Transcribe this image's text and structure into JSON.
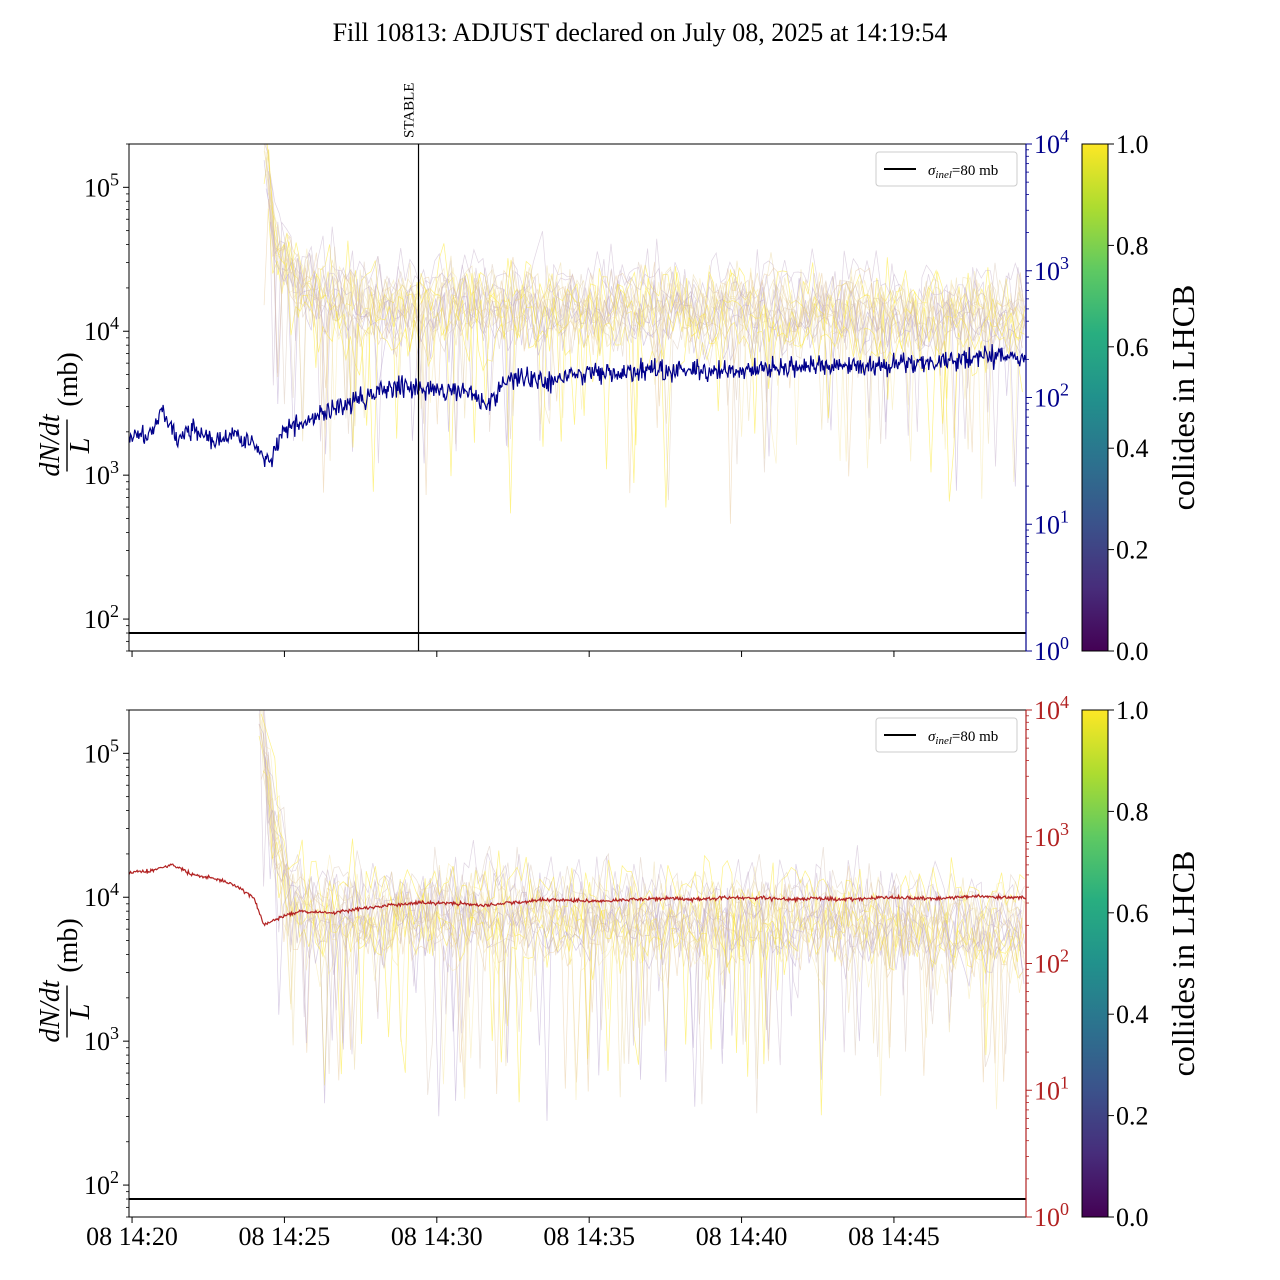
{
  "chart_data": [
    {
      "type": "line",
      "title": "Fill 10813: ADJUST declared on July 08, 2025 at 14:19:54",
      "ylabel": "dN/dt / L (mb)",
      "ylabel_parts": {
        "num": "dN/dt",
        "den": "L",
        "unit": "(mb)"
      },
      "yscale": "log",
      "ylim": [
        60,
        200000
      ],
      "yticks": [
        {
          "value": 100,
          "base": "10",
          "exp": "2"
        },
        {
          "value": 1000,
          "base": "10",
          "exp": "3"
        },
        {
          "value": 10000,
          "base": "10",
          "exp": "4"
        },
        {
          "value": 100000,
          "base": "10",
          "exp": "5"
        }
      ],
      "y2scale": "log",
      "y2lim": [
        1,
        10000
      ],
      "y2color": "#00008b",
      "y2ticks": [
        {
          "value": 1,
          "base": "10",
          "exp": "0"
        },
        {
          "value": 10,
          "base": "10",
          "exp": "1"
        },
        {
          "value": 100,
          "base": "10",
          "exp": "2"
        },
        {
          "value": 1000,
          "base": "10",
          "exp": "3"
        },
        {
          "value": 10000,
          "base": "10",
          "exp": "4"
        }
      ],
      "xlim": [
        "14:19:54",
        "14:49:20"
      ],
      "xticks": [
        "08 14:20",
        "08 14:25",
        "08 14:30",
        "08 14:35",
        "08 14:40",
        "08 14:45"
      ],
      "xticklabels_visible": false,
      "vline": {
        "time": "14:29:24",
        "label": "STABLE"
      },
      "hline": {
        "value": 80,
        "label": "σinel=80 mb"
      },
      "legend": {
        "position": "top-right",
        "entries": [
          {
            "sym": "σ",
            "sub": "inel",
            "rest": "=80 mb"
          }
        ]
      },
      "main_series": {
        "axis": "right",
        "color": "#00008b",
        "points": [
          [
            "14:19:54",
            45
          ],
          [
            "14:20:40",
            55
          ],
          [
            "14:21:00",
            80
          ],
          [
            "14:21:30",
            48
          ],
          [
            "14:22:00",
            58
          ],
          [
            "14:22:40",
            45
          ],
          [
            "14:23:20",
            52
          ],
          [
            "14:24:00",
            42
          ],
          [
            "14:24:30",
            32
          ],
          [
            "14:25:00",
            55
          ],
          [
            "14:25:40",
            62
          ],
          [
            "14:26:20",
            75
          ],
          [
            "14:27:00",
            90
          ],
          [
            "14:27:40",
            100
          ],
          [
            "14:28:20",
            115
          ],
          [
            "14:29:00",
            125
          ],
          [
            "14:29:40",
            120
          ],
          [
            "14:30:20",
            115
          ],
          [
            "14:31:00",
            110
          ],
          [
            "14:31:40",
            90
          ],
          [
            "14:32:20",
            140
          ],
          [
            "14:33:00",
            140
          ],
          [
            "14:33:40",
            130
          ],
          [
            "14:34:20",
            150
          ],
          [
            "14:35:00",
            155
          ],
          [
            "14:36:00",
            160
          ],
          [
            "14:37:00",
            165
          ],
          [
            "14:38:00",
            160
          ],
          [
            "14:39:00",
            165
          ],
          [
            "14:40:00",
            160
          ],
          [
            "14:41:00",
            170
          ],
          [
            "14:42:00",
            170
          ],
          [
            "14:43:00",
            175
          ],
          [
            "14:44:00",
            175
          ],
          [
            "14:45:00",
            185
          ],
          [
            "14:46:00",
            190
          ],
          [
            "14:47:00",
            200
          ],
          [
            "14:48:00",
            210
          ],
          [
            "14:49:20",
            205
          ]
        ]
      },
      "bunch_band": {
        "points": [
          [
            "14:24:20",
            200000
          ],
          [
            "14:24:40",
            40000
          ],
          [
            "14:25:30",
            20000
          ],
          [
            "14:27:00",
            15000
          ],
          [
            "14:29:00",
            13000
          ],
          [
            "14:31:00",
            15000
          ],
          [
            "14:34:00",
            14000
          ],
          [
            "14:38:00",
            13000
          ],
          [
            "14:42:00",
            13000
          ],
          [
            "14:46:00",
            12000
          ],
          [
            "14:49:20",
            12000
          ]
        ]
      },
      "colorbar": {
        "label": "collides in LHCB",
        "range": [
          0,
          1
        ],
        "ticks": [
          "0.0",
          "0.2",
          "0.4",
          "0.6",
          "0.8",
          "1.0"
        ],
        "cmap": "viridis"
      }
    },
    {
      "type": "line",
      "ylabel": "dN/dt / L (mb)",
      "ylabel_parts": {
        "num": "dN/dt",
        "den": "L",
        "unit": "(mb)"
      },
      "yscale": "log",
      "ylim": [
        60,
        200000
      ],
      "yticks": [
        {
          "value": 100,
          "base": "10",
          "exp": "2"
        },
        {
          "value": 1000,
          "base": "10",
          "exp": "3"
        },
        {
          "value": 10000,
          "base": "10",
          "exp": "4"
        },
        {
          "value": 100000,
          "base": "10",
          "exp": "5"
        }
      ],
      "y2scale": "log",
      "y2lim": [
        1,
        10000
      ],
      "y2color": "#b22222",
      "y2ticks": [
        {
          "value": 1,
          "base": "10",
          "exp": "0"
        },
        {
          "value": 10,
          "base": "10",
          "exp": "1"
        },
        {
          "value": 100,
          "base": "10",
          "exp": "2"
        },
        {
          "value": 1000,
          "base": "10",
          "exp": "3"
        },
        {
          "value": 10000,
          "base": "10",
          "exp": "4"
        }
      ],
      "xlim": [
        "14:19:54",
        "14:49:20"
      ],
      "xticks": [
        "08 14:20",
        "08 14:25",
        "08 14:30",
        "08 14:35",
        "08 14:40",
        "08 14:45"
      ],
      "xticklabels_visible": true,
      "hline": {
        "value": 80,
        "label": "σinel=80 mb"
      },
      "legend": {
        "position": "top-right",
        "entries": [
          {
            "sym": "σ",
            "sub": "inel",
            "rest": "=80 mb"
          }
        ]
      },
      "main_series": {
        "axis": "right",
        "color": "#b22222",
        "points": [
          [
            "14:19:54",
            520
          ],
          [
            "14:20:40",
            540
          ],
          [
            "14:21:20",
            600
          ],
          [
            "14:22:00",
            500
          ],
          [
            "14:22:40",
            470
          ],
          [
            "14:23:20",
            420
          ],
          [
            "14:24:00",
            330
          ],
          [
            "14:24:20",
            200
          ],
          [
            "14:24:50",
            230
          ],
          [
            "14:25:30",
            260
          ],
          [
            "14:26:30",
            250
          ],
          [
            "14:27:30",
            270
          ],
          [
            "14:28:30",
            290
          ],
          [
            "14:29:30",
            300
          ],
          [
            "14:30:30",
            300
          ],
          [
            "14:31:30",
            290
          ],
          [
            "14:32:30",
            300
          ],
          [
            "14:33:30",
            320
          ],
          [
            "14:34:30",
            315
          ],
          [
            "14:35:30",
            310
          ],
          [
            "14:36:30",
            320
          ],
          [
            "14:37:30",
            325
          ],
          [
            "14:38:30",
            320
          ],
          [
            "14:39:30",
            330
          ],
          [
            "14:40:30",
            330
          ],
          [
            "14:41:30",
            320
          ],
          [
            "14:42:30",
            325
          ],
          [
            "14:43:30",
            320
          ],
          [
            "14:44:30",
            330
          ],
          [
            "14:45:30",
            330
          ],
          [
            "14:46:30",
            325
          ],
          [
            "14:47:30",
            340
          ],
          [
            "14:48:30",
            335
          ],
          [
            "14:49:20",
            330
          ]
        ]
      },
      "bunch_band": {
        "points": [
          [
            "14:24:10",
            200000
          ],
          [
            "14:24:40",
            30000
          ],
          [
            "14:25:10",
            10000
          ],
          [
            "14:26:00",
            8000
          ],
          [
            "14:28:00",
            7500
          ],
          [
            "14:31:00",
            8000
          ],
          [
            "14:34:00",
            7500
          ],
          [
            "14:38:00",
            7000
          ],
          [
            "14:42:00",
            7500
          ],
          [
            "14:46:00",
            6500
          ],
          [
            "14:49:20",
            6000
          ]
        ]
      },
      "colorbar": {
        "label": "collides in LHCB",
        "range": [
          0,
          1
        ],
        "ticks": [
          "0.0",
          "0.2",
          "0.4",
          "0.6",
          "0.8",
          "1.0"
        ],
        "cmap": "viridis"
      }
    }
  ]
}
